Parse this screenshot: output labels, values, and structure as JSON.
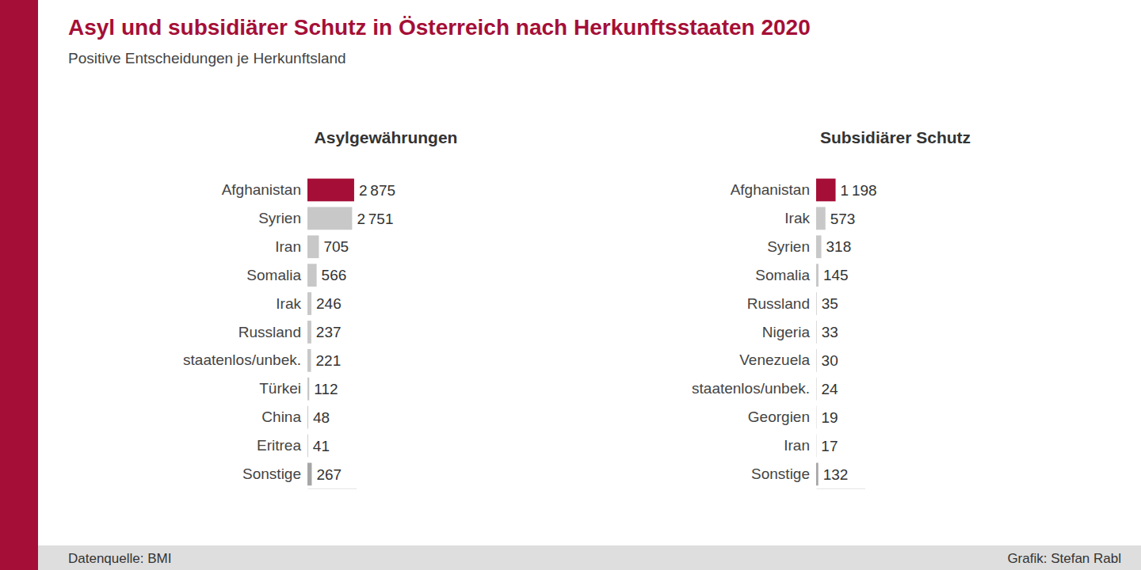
{
  "page": {
    "title": "Asyl und subsidiärer Schutz in Österreich nach Herkunftsstaaten 2020",
    "subtitle": "Positive Entscheidungen je Herkunftsland",
    "source": "Datenquelle: BMI",
    "credit": "Grafik: Stefan Rabl"
  },
  "chart_data": [
    {
      "type": "bar",
      "title": "Asylgewährungen",
      "orientation": "horizontal",
      "data_labels": true,
      "tick_labels": false,
      "categories": [
        "Afghanistan",
        "Syrien",
        "Iran",
        "Somalia",
        "Irak",
        "Russland",
        "staatenlos/unbek.",
        "Türkei",
        "China",
        "Eritrea",
        "Sonstige"
      ],
      "values": [
        2875,
        2751,
        705,
        566,
        246,
        237,
        221,
        112,
        48,
        41,
        267
      ],
      "value_labels": [
        "2 875",
        "2 751",
        "705",
        "566",
        "246",
        "237",
        "221",
        "112",
        "48",
        "41",
        "267"
      ],
      "colors": [
        "#a50f37",
        "#c8c8c8",
        "#c8c8c8",
        "#c8c8c8",
        "#c8c8c8",
        "#c8c8c8",
        "#c8c8c8",
        "#c8c8c8",
        "#c8c8c8",
        "#c8c8c8",
        "#a6a6a6"
      ],
      "xlim": [
        0,
        3000
      ]
    },
    {
      "type": "bar",
      "title": "Subsidiärer Schutz",
      "orientation": "horizontal",
      "data_labels": true,
      "tick_labels": false,
      "categories": [
        "Afghanistan",
        "Irak",
        "Syrien",
        "Somalia",
        "Russland",
        "Nigeria",
        "Venezuela",
        "staatenlos/unbek.",
        "Georgien",
        "Iran",
        "Sonstige"
      ],
      "values": [
        1198,
        573,
        318,
        145,
        35,
        33,
        30,
        24,
        19,
        17,
        132
      ],
      "value_labels": [
        "1 198",
        "573",
        "318",
        "145",
        "35",
        "33",
        "30",
        "24",
        "19",
        "17",
        "132"
      ],
      "colors": [
        "#a50f37",
        "#c8c8c8",
        "#c8c8c8",
        "#c8c8c8",
        "#c8c8c8",
        "#c8c8c8",
        "#c8c8c8",
        "#c8c8c8",
        "#c8c8c8",
        "#c8c8c8",
        "#a6a6a6"
      ],
      "xlim": [
        0,
        3000
      ]
    }
  ]
}
